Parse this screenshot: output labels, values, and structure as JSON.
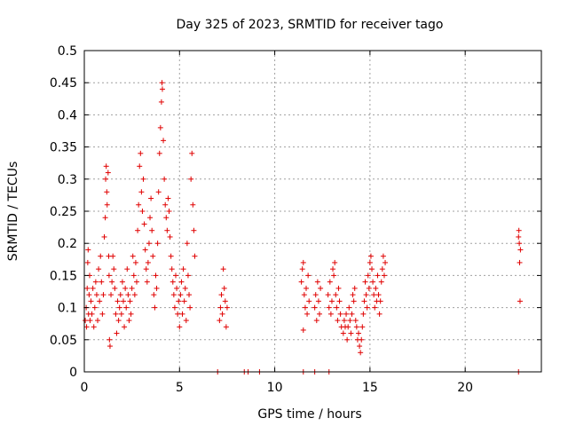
{
  "chart_data": {
    "type": "scatter",
    "title": "Day 325 of 2023, SRMTID for receiver tago",
    "xlabel": "GPS time / hours",
    "ylabel": "SRMTID / TECUs",
    "xlim": [
      0,
      24
    ],
    "ylim": [
      0,
      0.5
    ],
    "grid": true,
    "marker": "+",
    "color": "#e00000",
    "x_ticks": [
      0,
      5,
      10,
      15,
      20
    ],
    "x_tick_labels": [
      "0",
      "5",
      "10",
      "15",
      "20"
    ],
    "y_ticks": [
      0,
      0.05,
      0.1,
      0.15,
      0.2,
      0.25,
      0.3,
      0.35,
      0.4,
      0.45,
      0.5
    ],
    "y_tick_labels": [
      "0",
      "0.05",
      "0.1",
      "0.15",
      "0.2",
      "0.25",
      "0.3",
      "0.35",
      "0.4",
      "0.45",
      "0.5"
    ],
    "series": [
      {
        "name": "SRMTID",
        "points": [
          [
            0.05,
            0.08
          ],
          [
            0.1,
            0.1
          ],
          [
            0.12,
            0.07
          ],
          [
            0.15,
            0.13
          ],
          [
            0.18,
            0.17
          ],
          [
            0.2,
            0.19
          ],
          [
            0.22,
            0.09
          ],
          [
            0.25,
            0.12
          ],
          [
            0.28,
            0.15
          ],
          [
            0.3,
            0.08
          ],
          [
            0.35,
            0.11
          ],
          [
            0.4,
            0.09
          ],
          [
            0.45,
            0.13
          ],
          [
            0.5,
            0.07
          ],
          [
            0.55,
            0.1
          ],
          [
            0.6,
            0.14
          ],
          [
            0.65,
            0.12
          ],
          [
            0.7,
            0.08
          ],
          [
            0.75,
            0.16
          ],
          [
            0.8,
            0.11
          ],
          [
            0.85,
            0.18
          ],
          [
            0.9,
            0.14
          ],
          [
            0.95,
            0.09
          ],
          [
            1.0,
            0.12
          ],
          [
            1.05,
            0.21
          ],
          [
            1.1,
            0.24
          ],
          [
            1.12,
            0.3
          ],
          [
            1.15,
            0.32
          ],
          [
            1.18,
            0.28
          ],
          [
            1.2,
            0.26
          ],
          [
            1.25,
            0.31
          ],
          [
            1.28,
            0.18
          ],
          [
            1.3,
            0.15
          ],
          [
            1.32,
            0.05
          ],
          [
            1.35,
            0.04
          ],
          [
            1.4,
            0.12
          ],
          [
            1.45,
            0.14
          ],
          [
            1.5,
            0.18
          ],
          [
            1.55,
            0.16
          ],
          [
            1.6,
            0.13
          ],
          [
            1.65,
            0.09
          ],
          [
            1.7,
            0.06
          ],
          [
            1.75,
            0.11
          ],
          [
            1.8,
            0.08
          ],
          [
            1.85,
            0.1
          ],
          [
            1.9,
            0.12
          ],
          [
            1.95,
            0.09
          ],
          [
            2.0,
            0.14
          ],
          [
            2.05,
            0.11
          ],
          [
            2.1,
            0.07
          ],
          [
            2.15,
            0.13
          ],
          [
            2.2,
            0.1
          ],
          [
            2.25,
            0.16
          ],
          [
            2.3,
            0.12
          ],
          [
            2.35,
            0.08
          ],
          [
            2.4,
            0.11
          ],
          [
            2.45,
            0.09
          ],
          [
            2.5,
            0.13
          ],
          [
            2.55,
            0.18
          ],
          [
            2.6,
            0.15
          ],
          [
            2.65,
            0.12
          ],
          [
            2.7,
            0.17
          ],
          [
            2.75,
            0.14
          ],
          [
            2.8,
            0.22
          ],
          [
            2.85,
            0.26
          ],
          [
            2.9,
            0.32
          ],
          [
            2.95,
            0.34
          ],
          [
            3.0,
            0.28
          ],
          [
            3.05,
            0.25
          ],
          [
            3.1,
            0.3
          ],
          [
            3.15,
            0.23
          ],
          [
            3.2,
            0.19
          ],
          [
            3.25,
            0.16
          ],
          [
            3.3,
            0.14
          ],
          [
            3.35,
            0.17
          ],
          [
            3.4,
            0.2
          ],
          [
            3.45,
            0.24
          ],
          [
            3.5,
            0.27
          ],
          [
            3.55,
            0.22
          ],
          [
            3.6,
            0.18
          ],
          [
            3.65,
            0.12
          ],
          [
            3.7,
            0.1
          ],
          [
            3.75,
            0.15
          ],
          [
            3.8,
            0.13
          ],
          [
            3.85,
            0.2
          ],
          [
            3.9,
            0.28
          ],
          [
            3.95,
            0.34
          ],
          [
            4.0,
            0.38
          ],
          [
            4.05,
            0.42
          ],
          [
            4.08,
            0.45
          ],
          [
            4.1,
            0.44
          ],
          [
            4.15,
            0.36
          ],
          [
            4.2,
            0.3
          ],
          [
            4.25,
            0.26
          ],
          [
            4.3,
            0.24
          ],
          [
            4.35,
            0.22
          ],
          [
            4.4,
            0.27
          ],
          [
            4.45,
            0.25
          ],
          [
            4.5,
            0.21
          ],
          [
            4.55,
            0.18
          ],
          [
            4.6,
            0.16
          ],
          [
            4.65,
            0.14
          ],
          [
            4.7,
            0.12
          ],
          [
            4.75,
            0.1
          ],
          [
            4.8,
            0.15
          ],
          [
            4.85,
            0.13
          ],
          [
            4.9,
            0.09
          ],
          [
            4.95,
            0.11
          ],
          [
            5.0,
            0.07
          ],
          [
            5.05,
            0.12
          ],
          [
            5.1,
            0.14
          ],
          [
            5.15,
            0.09
          ],
          [
            5.2,
            0.16
          ],
          [
            5.25,
            0.11
          ],
          [
            5.3,
            0.13
          ],
          [
            5.35,
            0.08
          ],
          [
            5.4,
            0.2
          ],
          [
            5.45,
            0.15
          ],
          [
            5.5,
            0.12
          ],
          [
            5.55,
            0.1
          ],
          [
            5.6,
            0.3
          ],
          [
            5.65,
            0.34
          ],
          [
            5.7,
            0.26
          ],
          [
            5.75,
            0.22
          ],
          [
            5.8,
            0.18
          ],
          [
            7.1,
            0.08
          ],
          [
            7.15,
            0.1
          ],
          [
            7.2,
            0.12
          ],
          [
            7.25,
            0.09
          ],
          [
            7.3,
            0.16
          ],
          [
            7.35,
            0.13
          ],
          [
            7.4,
            0.11
          ],
          [
            7.45,
            0.07
          ],
          [
            7.5,
            0.1
          ],
          [
            11.4,
            0.14
          ],
          [
            11.45,
            0.16
          ],
          [
            11.5,
            0.17
          ],
          [
            11.55,
            0.12
          ],
          [
            11.6,
            0.1
          ],
          [
            11.65,
            0.13
          ],
          [
            11.7,
            0.09
          ],
          [
            11.75,
            0.15
          ],
          [
            11.8,
            0.11
          ],
          [
            11.5,
            0.065
          ],
          [
            12.1,
            0.1
          ],
          [
            12.15,
            0.12
          ],
          [
            12.2,
            0.08
          ],
          [
            12.25,
            0.14
          ],
          [
            12.3,
            0.11
          ],
          [
            12.35,
            0.09
          ],
          [
            12.4,
            0.13
          ],
          [
            12.8,
            0.12
          ],
          [
            12.85,
            0.1
          ],
          [
            12.9,
            0.14
          ],
          [
            12.95,
            0.09
          ],
          [
            13.0,
            0.11
          ],
          [
            13.05,
            0.16
          ],
          [
            13.1,
            0.15
          ],
          [
            13.15,
            0.17
          ],
          [
            13.2,
            0.12
          ],
          [
            13.25,
            0.1
          ],
          [
            13.3,
            0.08
          ],
          [
            13.35,
            0.13
          ],
          [
            13.4,
            0.11
          ],
          [
            13.45,
            0.09
          ],
          [
            13.5,
            0.07
          ],
          [
            13.6,
            0.06
          ],
          [
            13.65,
            0.08
          ],
          [
            13.7,
            0.07
          ],
          [
            13.75,
            0.09
          ],
          [
            13.8,
            0.05
          ],
          [
            13.85,
            0.07
          ],
          [
            13.9,
            0.1
          ],
          [
            13.95,
            0.08
          ],
          [
            14.0,
            0.06
          ],
          [
            14.05,
            0.09
          ],
          [
            14.1,
            0.12
          ],
          [
            14.15,
            0.11
          ],
          [
            14.2,
            0.13
          ],
          [
            14.25,
            0.08
          ],
          [
            14.3,
            0.07
          ],
          [
            14.35,
            0.05
          ],
          [
            14.4,
            0.06
          ],
          [
            14.45,
            0.04
          ],
          [
            14.5,
            0.03
          ],
          [
            14.55,
            0.05
          ],
          [
            14.6,
            0.07
          ],
          [
            14.65,
            0.09
          ],
          [
            14.7,
            0.11
          ],
          [
            14.75,
            0.14
          ],
          [
            14.8,
            0.12
          ],
          [
            14.85,
            0.1
          ],
          [
            14.9,
            0.15
          ],
          [
            14.95,
            0.13
          ],
          [
            15.0,
            0.17
          ],
          [
            15.05,
            0.18
          ],
          [
            15.1,
            0.16
          ],
          [
            15.15,
            0.14
          ],
          [
            15.2,
            0.12
          ],
          [
            15.25,
            0.1
          ],
          [
            15.3,
            0.13
          ],
          [
            15.35,
            0.11
          ],
          [
            15.4,
            0.15
          ],
          [
            15.45,
            0.12
          ],
          [
            15.5,
            0.09
          ],
          [
            15.55,
            0.11
          ],
          [
            15.6,
            0.14
          ],
          [
            15.65,
            0.16
          ],
          [
            15.7,
            0.18
          ],
          [
            15.75,
            0.15
          ],
          [
            15.8,
            0.17
          ],
          [
            22.8,
            0.21
          ],
          [
            22.82,
            0.22
          ],
          [
            22.84,
            0.2
          ],
          [
            22.86,
            0.17
          ],
          [
            22.88,
            0.11
          ],
          [
            22.9,
            0.19
          ],
          [
            7.0,
            0.0
          ],
          [
            8.4,
            0.0
          ],
          [
            8.6,
            0.0
          ],
          [
            9.2,
            0.0
          ],
          [
            11.5,
            0.0
          ],
          [
            12.1,
            0.0
          ],
          [
            12.85,
            0.0
          ],
          [
            22.8,
            0.0
          ]
        ]
      }
    ]
  }
}
